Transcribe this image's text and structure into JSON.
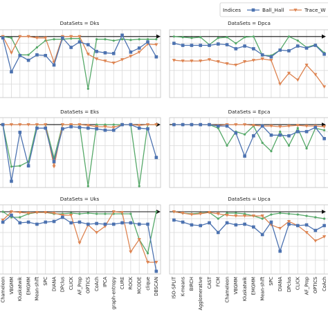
{
  "legend": {
    "title": "Indices",
    "entries": [
      {
        "label": "Ball_Hall",
        "color": "#4c72b0",
        "marker": "square"
      },
      {
        "label": "Trace_W",
        "color": "#dd8452",
        "marker": "triangle-down"
      }
    ]
  },
  "colors": {
    "series3": "#55a868",
    "arrow": "#111111",
    "grid": "#d9d9d9"
  },
  "panels": [
    {
      "id": "dks",
      "title": "DataSets = Dks"
    },
    {
      "id": "dpca",
      "title": "DataSets = Dpca"
    },
    {
      "id": "eks",
      "title": "DataSets = Eks"
    },
    {
      "id": "epca",
      "title": "DataSets = Epca"
    },
    {
      "id": "uks",
      "title": "DataSets = Uks"
    },
    {
      "id": "upca",
      "title": "DataSets = Upca"
    }
  ],
  "xcat_left": [
    "Chameleon",
    "VBGMM",
    "Kluskatwik",
    "EMGMM",
    "Mean-shift",
    "SPC",
    "DIANA",
    "DPclus",
    "CLICK",
    "AF_Prop",
    "OPTICS",
    "CoAch",
    "IPCA",
    "graph-entropy",
    "CURE",
    "ROCK",
    "MCODE",
    "clique",
    "DBSCAN"
  ],
  "xcat_right": [
    "ISO-SPLIT",
    "K-means",
    "BIRCH",
    "Agglomerative",
    "CAST",
    "FCM",
    "Chameleon",
    "VBGMM",
    "Kluskatwik",
    "EMGMM",
    "Mean-shift",
    "SPC",
    "DIANA",
    "DPclus",
    "CLICK",
    "AF_Prop",
    "OPTICS",
    "CoAch"
  ],
  "chart_data": [
    {
      "type": "line",
      "title": "DataSets = Dks",
      "ylim": [
        0,
        1
      ],
      "categories": [
        "Chameleon",
        "VBGMM",
        "Kluskatwik",
        "EMGMM",
        "Mean-shift",
        "SPC",
        "DIANA",
        "DPclus",
        "CLICK",
        "AF_Prop",
        "OPTICS",
        "CoAch",
        "IPCA",
        "graph-entropy",
        "CURE",
        "ROCK",
        "MCODE",
        "clique",
        "DBSCAN"
      ],
      "series": [
        {
          "name": "Ball_Hall",
          "values": [
            0.88,
            0.38,
            0.62,
            0.55,
            0.63,
            0.62,
            0.48,
            0.88,
            0.74,
            0.82,
            0.78,
            0.68,
            0.66,
            0.65,
            0.92,
            0.67,
            0.73,
            0.82,
            0.6
          ]
        },
        {
          "values": [
            0.9,
            0.66,
            0.9,
            0.9,
            0.88,
            0.88,
            0.52,
            0.9,
            0.9,
            0.9,
            0.64,
            0.57,
            0.54,
            0.51,
            0.56,
            0.61,
            0.67,
            0.79,
            0.78
          ]
        },
        {
          "values": [
            0.9,
            0.88,
            0.63,
            0.63,
            0.74,
            0.84,
            0.86,
            0.86,
            0.87,
            0.87,
            0.13,
            0.86,
            0.86,
            0.84,
            0.86,
            0.85,
            0.86,
            0.86,
            0.86
          ]
        }
      ]
    },
    {
      "type": "line",
      "title": "DataSets = Dpca",
      "ylim": [
        0,
        1
      ],
      "categories": [
        "ISO-SPLIT",
        "K-means",
        "BIRCH",
        "Agglomerative",
        "CAST",
        "FCM",
        "Chameleon",
        "VBGMM",
        "Kluskatwik",
        "EMGMM",
        "Mean-shift",
        "SPC",
        "DIANA",
        "DPclus",
        "CLICK",
        "AF_Prop",
        "OPTICS",
        "CoAch"
      ],
      "series": [
        {
          "name": "Ball_Hall",
          "values": [
            0.8,
            0.77,
            0.77,
            0.77,
            0.77,
            0.79,
            0.78,
            0.72,
            0.76,
            0.72,
            0.63,
            0.6,
            0.7,
            0.69,
            0.76,
            0.73,
            0.77,
            0.64
          ]
        },
        {
          "values": [
            0.55,
            0.54,
            0.54,
            0.54,
            0.56,
            0.53,
            0.5,
            0.48,
            0.53,
            0.55,
            0.57,
            0.55,
            0.2,
            0.36,
            0.26,
            0.48,
            0.34,
            0.16
          ]
        },
        {
          "values": [
            0.9,
            0.89,
            0.88,
            0.89,
            0.78,
            0.88,
            0.89,
            0.8,
            0.89,
            0.9,
            0.62,
            0.62,
            0.7,
            0.9,
            0.84,
            0.74,
            0.78,
            0.66
          ]
        }
      ]
    },
    {
      "type": "line",
      "title": "DataSets = Eks",
      "ylim": [
        0,
        1
      ],
      "categories": [
        "Chameleon",
        "VBGMM",
        "Kluskatwik",
        "EMGMM",
        "Mean-shift",
        "SPC",
        "DIANA",
        "DPclus",
        "CLICK",
        "AF_Prop",
        "OPTICS",
        "CoAch",
        "IPCA",
        "graph-entropy",
        "CURE",
        "ROCK",
        "MCODE",
        "clique",
        "DBSCAN"
      ],
      "series": [
        {
          "name": "Ball_Hall",
          "values": [
            0.9,
            0.09,
            0.79,
            0.31,
            0.85,
            0.85,
            0.37,
            0.84,
            0.87,
            0.86,
            0.85,
            0.84,
            0.82,
            0.82,
            0.9,
            0.9,
            0.85,
            0.84,
            0.43
          ]
        },
        {
          "values": [
            0.9,
            0.9,
            0.9,
            0.9,
            0.9,
            0.9,
            0.3,
            0.9,
            0.9,
            0.9,
            0.89,
            0.87,
            0.87,
            0.86,
            0.9,
            0.9,
            0.89,
            0.9,
            0.9
          ]
        },
        {
          "values": [
            0.9,
            0.3,
            0.31,
            0.37,
            0.9,
            0.9,
            0.42,
            0.9,
            0.9,
            0.9,
            0.02,
            0.9,
            0.9,
            0.9,
            0.9,
            0.9,
            0.02,
            0.9,
            0.9
          ]
        }
      ]
    },
    {
      "type": "line",
      "title": "DataSets = Epca",
      "ylim": [
        0,
        1
      ],
      "categories": [
        "ISO-SPLIT",
        "K-means",
        "BIRCH",
        "Agglomerative",
        "CAST",
        "FCM",
        "Chameleon",
        "VBGMM",
        "Kluskatwik",
        "EMGMM",
        "Mean-shift",
        "SPC",
        "DIANA",
        "DPclus",
        "CLICK",
        "AF_Prop",
        "OPTICS",
        "CoAch"
      ],
      "series": [
        {
          "name": "Ball_Hall",
          "values": [
            0.9,
            0.9,
            0.9,
            0.9,
            0.9,
            0.88,
            0.88,
            0.78,
            0.45,
            0.74,
            0.88,
            0.75,
            0.75,
            0.74,
            0.8,
            0.8,
            0.86,
            0.7
          ]
        },
        {
          "values": [
            0.9,
            0.9,
            0.9,
            0.9,
            0.9,
            0.89,
            0.9,
            0.9,
            0.9,
            0.89,
            0.88,
            0.88,
            0.87,
            0.88,
            0.89,
            0.88,
            0.88,
            0.87
          ]
        },
        {
          "values": [
            0.9,
            0.9,
            0.9,
            0.9,
            0.9,
            0.85,
            0.6,
            0.8,
            0.76,
            0.88,
            0.64,
            0.52,
            0.8,
            0.6,
            0.85,
            0.56,
            0.85,
            0.82
          ]
        }
      ]
    },
    {
      "type": "line",
      "title": "DataSets = Uks",
      "ylim": [
        0,
        1
      ],
      "categories": [
        "Chameleon",
        "VBGMM",
        "Kluskatwik",
        "EMGMM",
        "Mean-shift",
        "SPC",
        "DIANA",
        "DPclus",
        "CLICK",
        "AF_Prop",
        "OPTICS",
        "CoAch",
        "IPCA",
        "graph-entropy",
        "CURE",
        "ROCK",
        "MCODE",
        "clique",
        "DBSCAN"
      ],
      "series": [
        {
          "name": "Ball_Hall",
          "values": [
            0.75,
            0.85,
            0.74,
            0.75,
            0.72,
            0.75,
            0.76,
            0.82,
            0.74,
            0.75,
            0.72,
            0.73,
            0.72,
            0.72,
            0.74,
            0.74,
            0.72,
            0.72,
            0.04
          ]
        },
        {
          "values": [
            0.78,
            0.9,
            0.89,
            0.88,
            0.89,
            0.89,
            0.88,
            0.85,
            0.85,
            0.45,
            0.71,
            0.6,
            0.69,
            0.9,
            0.89,
            0.32,
            0.5,
            0.17,
            0.17
          ]
        },
        {
          "values": [
            0.9,
            0.82,
            0.82,
            0.87,
            0.89,
            0.89,
            0.87,
            0.87,
            0.88,
            0.87,
            0.88,
            0.87,
            0.87,
            0.87,
            0.87,
            0.87,
            0.5,
            0.3,
            0.9
          ]
        }
      ]
    },
    {
      "type": "line",
      "title": "DataSets = Upca",
      "ylim": [
        0,
        1
      ],
      "categories": [
        "ISO-SPLIT",
        "K-means",
        "BIRCH",
        "Agglomerative",
        "CAST",
        "FCM",
        "Chameleon",
        "VBGMM",
        "Kluskatwik",
        "EMGMM",
        "Mean-shift",
        "SPC",
        "DIANA",
        "DPclus",
        "CLICK",
        "AF_Prop",
        "OPTICS",
        "CoAch"
      ],
      "series": [
        {
          "name": "Ball_Hall",
          "values": [
            0.78,
            0.75,
            0.71,
            0.7,
            0.74,
            0.6,
            0.74,
            0.71,
            0.72,
            0.68,
            0.57,
            0.75,
            0.33,
            0.72,
            0.7,
            0.71,
            0.63,
            0.7
          ]
        },
        {
          "values": [
            0.9,
            0.88,
            0.86,
            0.87,
            0.89,
            0.87,
            0.85,
            0.84,
            0.84,
            0.84,
            0.84,
            0.71,
            0.66,
            0.76,
            0.7,
            0.6,
            0.48,
            0.54
          ]
        },
        {
          "values": [
            0.9,
            0.88,
            0.87,
            0.88,
            0.89,
            0.8,
            0.88,
            0.88,
            0.87,
            0.84,
            0.8,
            0.86,
            0.88,
            0.87,
            0.86,
            0.84,
            0.82,
            0.8
          ]
        }
      ]
    }
  ]
}
